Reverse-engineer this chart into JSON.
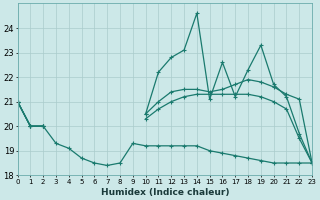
{
  "xlabel": "Humidex (Indice chaleur)",
  "bg_color": "#cce8e8",
  "line_color": "#1a7a6e",
  "grid_color": "#aacccc",
  "ylim": [
    18,
    25
  ],
  "yticks": [
    18,
    19,
    20,
    21,
    22,
    23,
    24
  ],
  "xlim": [
    0,
    23
  ],
  "x_values": [
    0,
    1,
    2,
    3,
    4,
    5,
    6,
    7,
    8,
    9,
    10,
    11,
    12,
    13,
    14,
    15,
    16,
    17,
    18,
    19,
    20,
    21,
    22,
    23
  ],
  "series_jagged": [
    21.0,
    20.0,
    20.0,
    null,
    null,
    null,
    null,
    null,
    null,
    null,
    20.5,
    22.2,
    22.8,
    23.1,
    24.6,
    21.1,
    22.6,
    21.2,
    22.3,
    23.3,
    21.7,
    21.2,
    19.7,
    18.5
  ],
  "series_smooth_upper": [
    21.0,
    20.0,
    20.0,
    null,
    null,
    null,
    null,
    null,
    null,
    null,
    20.5,
    21.0,
    21.4,
    21.5,
    21.5,
    21.4,
    21.5,
    21.7,
    21.9,
    21.8,
    21.6,
    21.3,
    21.1,
    18.5
  ],
  "series_smooth_lower": [
    21.0,
    20.0,
    20.0,
    null,
    null,
    null,
    null,
    null,
    null,
    null,
    20.3,
    20.7,
    21.0,
    21.2,
    21.3,
    21.3,
    21.3,
    21.3,
    21.3,
    21.2,
    21.0,
    20.7,
    19.5,
    18.5
  ],
  "series_dip": [
    21.0,
    20.0,
    20.0,
    19.3,
    19.1,
    18.7,
    18.5,
    18.4,
    18.5,
    19.3,
    19.2,
    19.2,
    19.2,
    19.2,
    19.2,
    19.0,
    18.9,
    18.8,
    18.7,
    18.6,
    18.5,
    18.5,
    18.5,
    18.5
  ]
}
